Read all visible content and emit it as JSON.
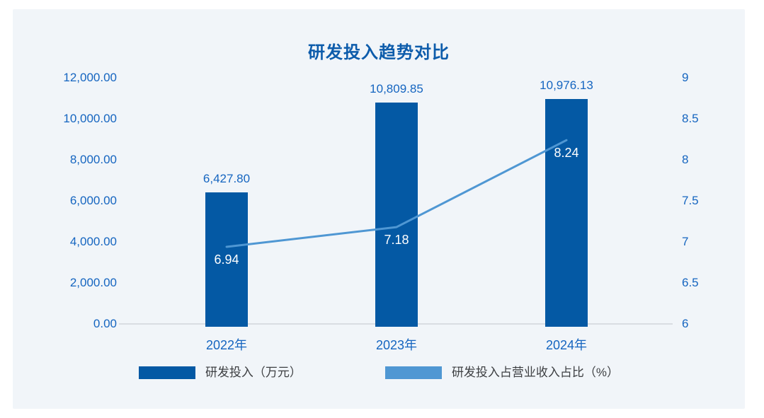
{
  "title": "研发投入趋势对比",
  "colors": {
    "panel_background": "#f1f5f9",
    "outer_background": "#ffffff",
    "bar": "#0459a4",
    "line": "#4f97d3",
    "axis_text": "#1565c0",
    "title_text": "#0d5cab",
    "legend_text": "#3d3f42",
    "baseline": "#d9dde2",
    "point_label_text": "#ffffff"
  },
  "chart_data": {
    "type": "bar+line combo",
    "title": "研发投入趋势对比",
    "categories": [
      "2022年",
      "2023年",
      "2024年"
    ],
    "series": [
      {
        "name": "研发投入（万元）",
        "type": "bar",
        "axis": "left",
        "color": "#0459a4",
        "values": [
          6427.8,
          10809.85,
          10976.13
        ],
        "labels": [
          "6,427.80",
          "10,809.85",
          "10,976.13"
        ]
      },
      {
        "name": "研发投入占营业收入占比（%）",
        "type": "line",
        "axis": "right",
        "color": "#4f97d3",
        "values": [
          6.94,
          7.18,
          8.24
        ],
        "labels": [
          "6.94",
          "7.18",
          "8.24"
        ]
      }
    ],
    "left_axis": {
      "min": 0,
      "max": 12000,
      "ticks": [
        {
          "label": "12,000.00",
          "value": 12000
        },
        {
          "label": "10,000.00",
          "value": 10000
        },
        {
          "label": "8,000.00",
          "value": 8000
        },
        {
          "label": "6,000.00",
          "value": 6000
        },
        {
          "label": "4,000.00",
          "value": 4000
        },
        {
          "label": "2,000.00",
          "value": 2000
        },
        {
          "label": "0.00",
          "value": 0
        }
      ]
    },
    "right_axis": {
      "min": 6,
      "max": 9,
      "ticks": [
        {
          "label": "9",
          "value": 9
        },
        {
          "label": "8.5",
          "value": 8.5
        },
        {
          "label": "8",
          "value": 8
        },
        {
          "label": "7.5",
          "value": 7.5
        },
        {
          "label": "7",
          "value": 7
        },
        {
          "label": "6.5",
          "value": 6.5
        },
        {
          "label": "6",
          "value": 6
        }
      ]
    },
    "legend": [
      {
        "label": "研发投入（万元）",
        "color": "#0459a4"
      },
      {
        "label": "研发投入占营业收入占比（%）",
        "color": "#4f97d3"
      }
    ],
    "grid": false,
    "legend_position": "bottom"
  }
}
